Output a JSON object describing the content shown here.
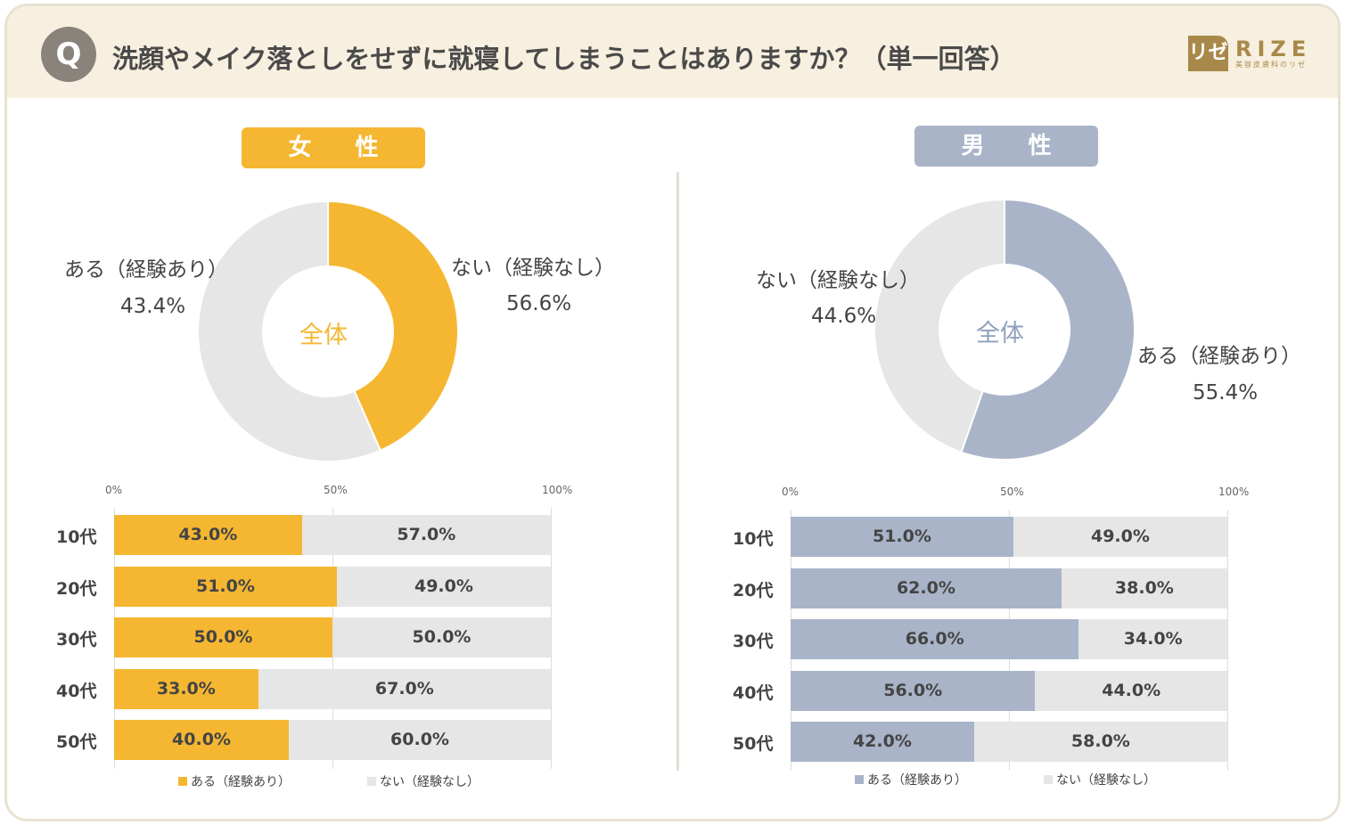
{
  "header": {
    "q_badge": "Q",
    "title": "洗顔やメイク落としをせずに就寝してしまうことはありますか？（単一回答）",
    "logo": {
      "mark": "リゼ",
      "name": "RIZE",
      "sub": "美容皮膚科のリゼ"
    }
  },
  "colors": {
    "female": "#F5B731",
    "male": "#A9B4C8",
    "none": "#E6E6E6",
    "female_text": "#F5B731",
    "male_text": "#8fa0bb"
  },
  "chart_data": [
    {
      "type": "pie",
      "title": "女 性",
      "center_label": "全体",
      "categories": [
        "ある（経験あり）",
        "ない（経験なし）"
      ],
      "values": [
        43.4,
        56.6
      ],
      "value_labels": [
        "43.4%",
        "56.6%"
      ]
    },
    {
      "type": "bar",
      "stacked": true,
      "orientation": "horizontal",
      "categories": [
        "10代",
        "20代",
        "30代",
        "40代",
        "50代"
      ],
      "xlim": [
        0,
        100
      ],
      "x_ticks": [
        "0%",
        "50%",
        "100%"
      ],
      "grid": true,
      "legend": "bottom",
      "series": [
        {
          "name": "ある（経験あり）",
          "values": [
            43.0,
            51.0,
            50.0,
            33.0,
            40.0
          ],
          "labels": [
            "43.0%",
            "51.0%",
            "50.0%",
            "33.0%",
            "40.0%"
          ]
        },
        {
          "name": "ない（経験なし）",
          "values": [
            57.0,
            49.0,
            50.0,
            67.0,
            60.0
          ],
          "labels": [
            "57.0%",
            "49.0%",
            "50.0%",
            "67.0%",
            "60.0%"
          ]
        }
      ]
    },
    {
      "type": "pie",
      "title": "男 性",
      "center_label": "全体",
      "categories": [
        "ある（経験あり）",
        "ない（経験なし）"
      ],
      "values": [
        55.4,
        44.6
      ],
      "value_labels": [
        "55.4%",
        "44.6%"
      ]
    },
    {
      "type": "bar",
      "stacked": true,
      "orientation": "horizontal",
      "categories": [
        "10代",
        "20代",
        "30代",
        "40代",
        "50代"
      ],
      "xlim": [
        0,
        100
      ],
      "x_ticks": [
        "0%",
        "50%",
        "100%"
      ],
      "grid": true,
      "legend": "bottom",
      "series": [
        {
          "name": "ある（経験あり）",
          "values": [
            51.0,
            62.0,
            66.0,
            56.0,
            42.0
          ],
          "labels": [
            "51.0%",
            "62.0%",
            "66.0%",
            "56.0%",
            "42.0%"
          ]
        },
        {
          "name": "ない（経験なし）",
          "values": [
            49.0,
            38.0,
            34.0,
            44.0,
            58.0
          ],
          "labels": [
            "49.0%",
            "38.0%",
            "34.0%",
            "44.0%",
            "58.0%"
          ]
        }
      ]
    }
  ]
}
